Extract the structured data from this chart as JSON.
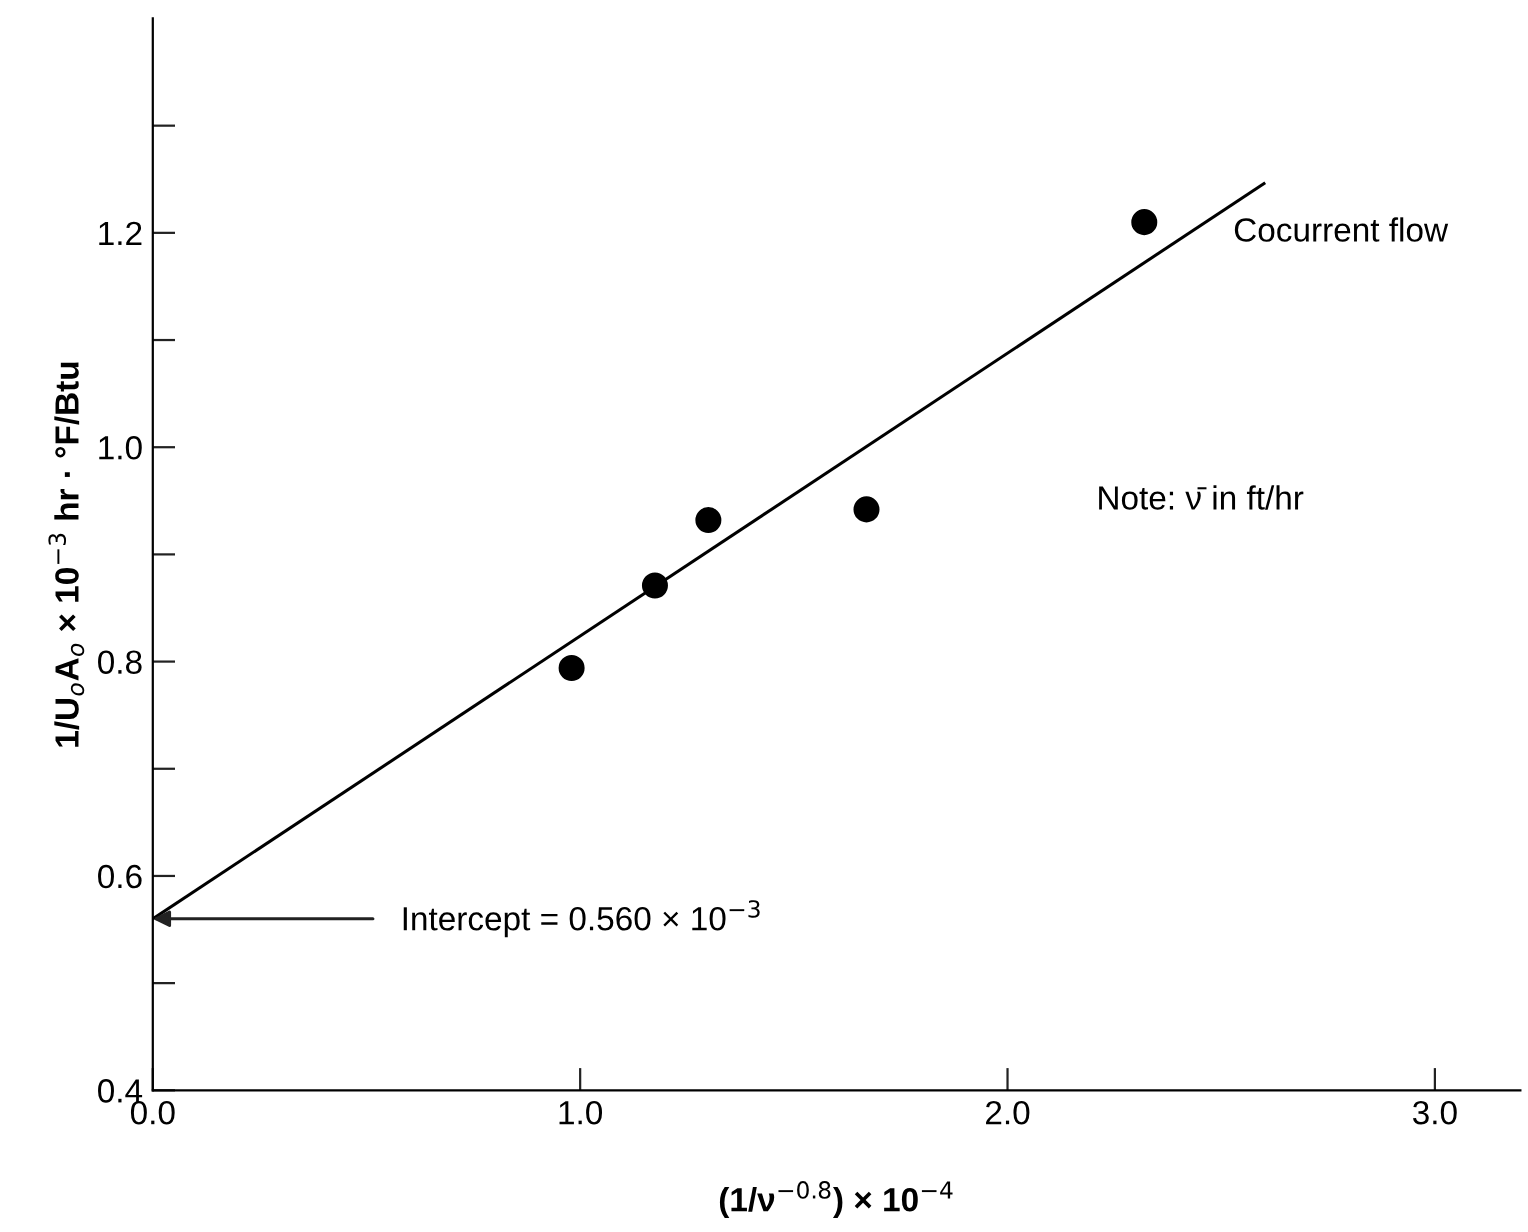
{
  "chart_data": {
    "type": "scatter",
    "xlabel": "(1/ν$^{−0.8}$) × 10$^{−4}$",
    "ylabel": "1/U$_{o}$A$_{o}$ × 10$^{−3}$ hr · °F/Btu",
    "series": [
      {
        "color": "#000000",
        "marker": "circle",
        "x": [
          0.98,
          1.175,
          1.3,
          1.67,
          2.32
        ],
        "values": [
          0.794,
          0.871,
          0.932,
          0.942,
          1.21
        ]
      },
      {
        "type": "line",
        "color": "#000000",
        "marker": "none",
        "line_style": "solid",
        "x": [
          0,
          2.6
        ],
        "values": [
          0.56,
          1.246
        ]
      }
    ],
    "annotations": [
      {
        "text": "Intercept = 0.560 × 10$^{−3}$",
        "x": 0,
        "y": 0.56
      },
      "Cocurrent flow",
      "Note: ν̄ in ft/hr"
    ],
    "xlim": [
      0,
      3.2
    ],
    "ylim": [
      0.4,
      1.4
    ],
    "xticks": [
      {
        "value": 0,
        "label": "0.0"
      },
      {
        "value": 1,
        "label": "1.0"
      },
      {
        "value": 2,
        "label": "2.0"
      },
      {
        "value": 3,
        "label": "3.0"
      }
    ],
    "yticks": [
      {
        "value": 0.4,
        "label": "0.4"
      },
      {
        "value": 0.5,
        "label": null
      },
      {
        "value": 0.6,
        "label": "0.6"
      },
      {
        "value": 0.7,
        "label": null
      },
      {
        "value": 0.8,
        "label": "0.8"
      },
      {
        "value": 0.9,
        "label": null
      },
      {
        "value": 1.0,
        "label": "1.0"
      },
      {
        "value": 1.1,
        "label": null
      },
      {
        "value": 1.2,
        "label": "1.2"
      },
      {
        "value": 1.3,
        "label": null
      }
    ],
    "grid": false,
    "legend": false
  }
}
